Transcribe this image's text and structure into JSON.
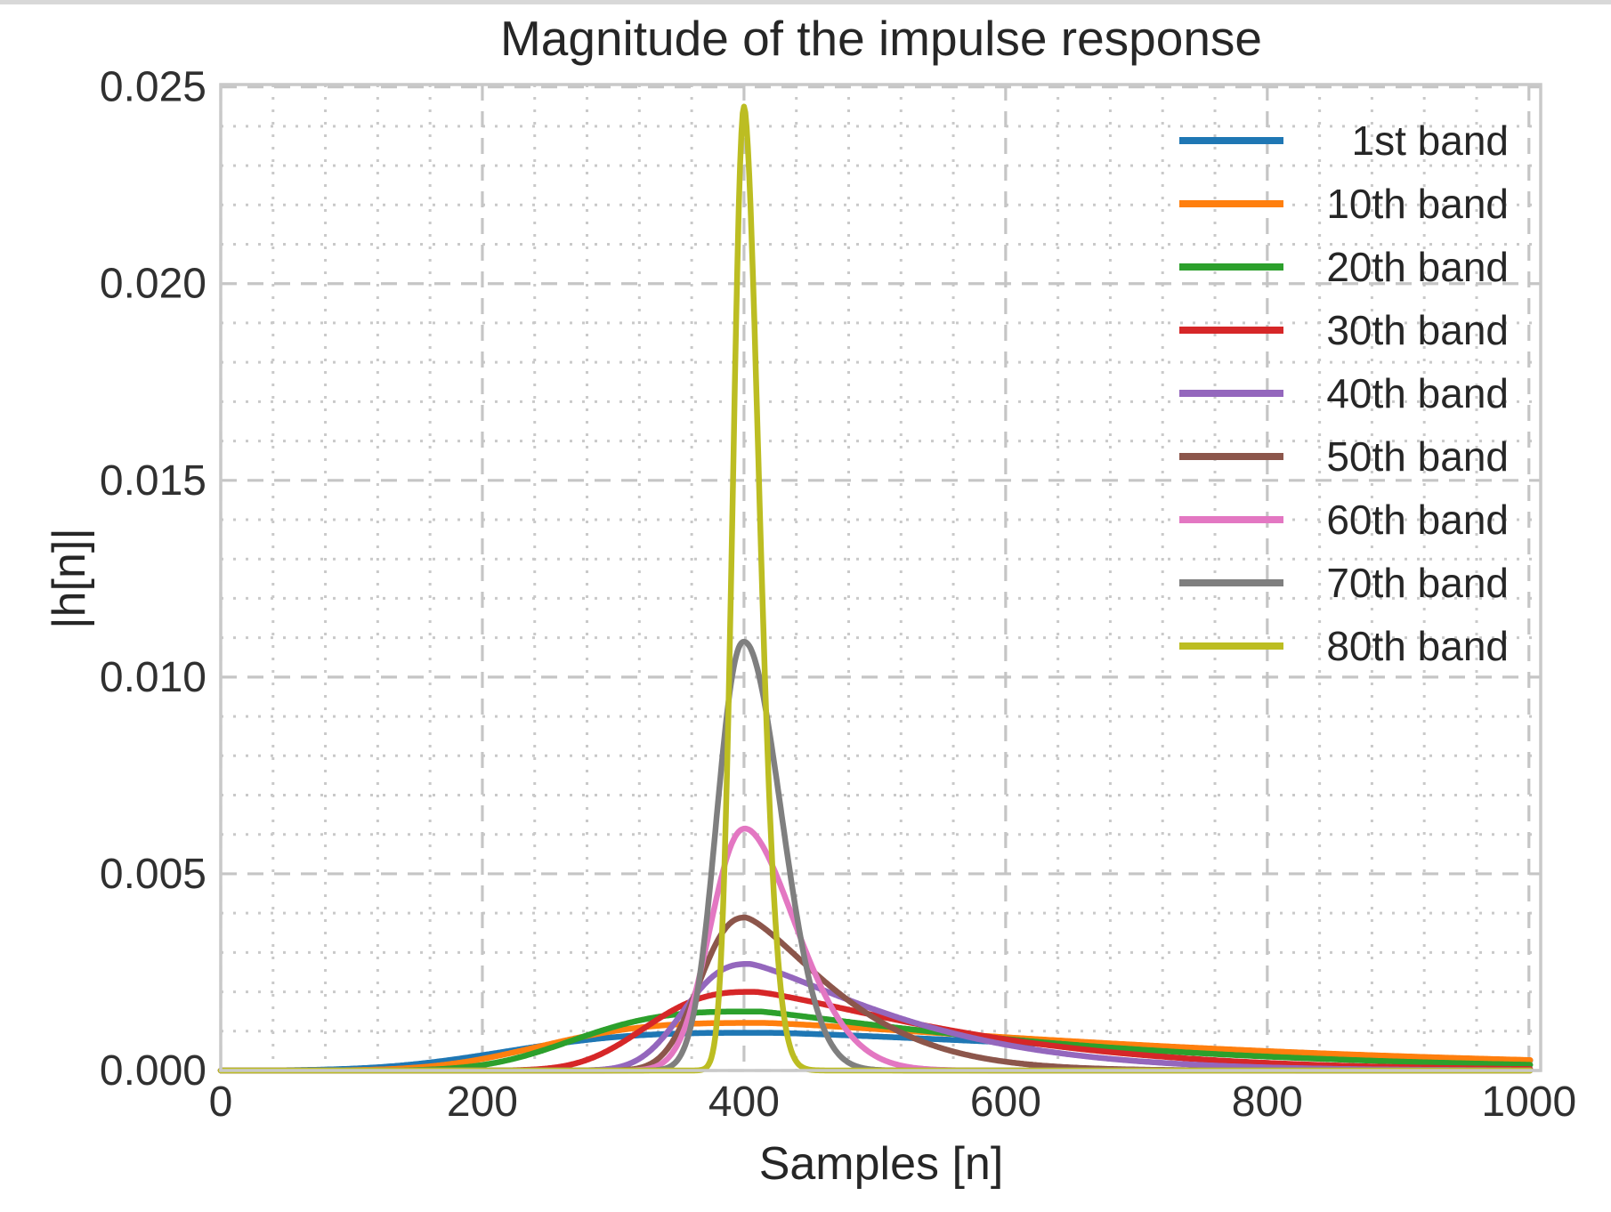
{
  "window": {
    "background": "#ffffff",
    "top_strip_color": "#d8d8d8"
  },
  "styles": {
    "text_color": "#262626",
    "spine_color": "#c9c9c9",
    "grid_major_color": "#c5c5c5",
    "grid_minor_color": "#c9c9c9",
    "plot_background": "#ffffff"
  },
  "chart_data": {
    "type": "line",
    "title": "Magnitude of the impulse response",
    "xlabel": "Samples [n]",
    "ylabel": "|h[n]|",
    "xlim": [
      0,
      1009
    ],
    "ylim": [
      0,
      0.02506
    ],
    "x_major_ticks": [
      0,
      200,
      400,
      600,
      800,
      1000
    ],
    "x_tick_labels": [
      "0",
      "200",
      "400",
      "600",
      "800",
      "1000"
    ],
    "y_major_ticks": [
      0.0,
      0.005,
      0.01,
      0.015,
      0.02,
      0.025
    ],
    "y_tick_labels": [
      "0.000",
      "0.005",
      "0.010",
      "0.015",
      "0.020",
      "0.025"
    ],
    "x_minor_step": 40,
    "y_minor_step": 0.001,
    "grid": {
      "major": "dashed",
      "minor": "dotted"
    },
    "legend_position": "upper right",
    "series": [
      {
        "label": "1st band",
        "color": "#1f77b4",
        "peak": {
          "x": 418,
          "y": 0.00096
        },
        "y_at_1000": 0.00028,
        "shape": {
          "center": 418,
          "amp": 0.00096,
          "left_width": 225,
          "left_exp": 3.2,
          "right_width": 470,
          "right_exp": 1.3
        }
      },
      {
        "label": "10th band",
        "color": "#ff7f0e",
        "peak": {
          "x": 415,
          "y": 0.00121
        },
        "y_at_1000": 0.00022,
        "shape": {
          "center": 415,
          "amp": 0.00121,
          "left_width": 193,
          "left_exp": 3.2,
          "right_width": 420,
          "right_exp": 1.25
        }
      },
      {
        "label": "20th band",
        "color": "#2ca02c",
        "peak": {
          "x": 412,
          "y": 0.0015
        },
        "y_at_1000": 0.00015,
        "shape": {
          "center": 412,
          "amp": 0.0015,
          "left_width": 162,
          "left_exp": 3.2,
          "right_width": 282,
          "right_exp": 1.15
        }
      },
      {
        "label": "30th band",
        "color": "#d62728",
        "peak": {
          "x": 408,
          "y": 0.002
        },
        "y_at_1000": 5e-05,
        "shape": {
          "center": 408,
          "amp": 0.002,
          "left_width": 100,
          "left_exp": 2.8,
          "right_width": 204,
          "right_exp": 1.3
        }
      },
      {
        "label": "40th band",
        "color": "#9467bd",
        "peak": {
          "x": 404,
          "y": 0.00271
        },
        "y_at_1000": 1e-05,
        "shape": {
          "center": 404,
          "amp": 0.00271,
          "left_width": 62,
          "left_exp": 2.6,
          "right_width": 150,
          "right_exp": 1.3
        }
      },
      {
        "label": "50th band",
        "color": "#8c564b",
        "peak": {
          "x": 401,
          "y": 0.00389
        },
        "y_at_1000": 0.0,
        "shape": {
          "center": 401,
          "amp": 0.00389,
          "left_width": 45,
          "left_exp": 2.4,
          "right_width": 94,
          "right_exp": 1.4
        }
      },
      {
        "label": "60th band",
        "color": "#e377c2",
        "peak": {
          "x": 401,
          "y": 0.00615
        },
        "y_at_1000": 0.0,
        "shape": {
          "center": 401,
          "amp": 0.00615,
          "left_width": 36,
          "left_exp": 2.2,
          "right_width": 56,
          "right_exp": 1.8
        }
      },
      {
        "label": "70th band",
        "color": "#7f7f7f",
        "peak": {
          "x": 400,
          "y": 0.0109
        },
        "y_at_1000": 0.0,
        "shape": {
          "center": 400,
          "amp": 0.0109,
          "left_width": 28,
          "left_exp": 2.2,
          "right_width": 40,
          "right_exp": 2.0
        }
      },
      {
        "label": "80th band",
        "color": "#bcbd22",
        "peak": {
          "x": 400,
          "y": 0.0245
        },
        "y_at_1000": 0.0,
        "shape": {
          "center": 400,
          "amp": 0.0245,
          "left_width": 12,
          "left_exp": 2.0,
          "right_width": 17,
          "right_exp": 1.8
        }
      }
    ]
  }
}
